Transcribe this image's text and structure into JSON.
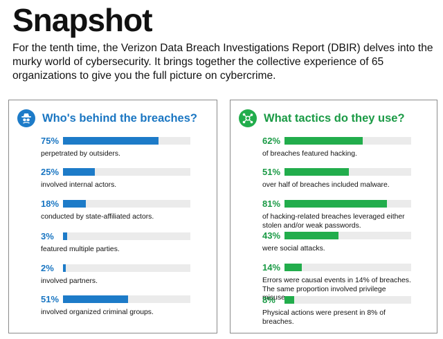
{
  "page": {
    "title": "Snapshot",
    "intro": "For the tenth time, the Verizon Data Breach Investigations Report (DBIR) delves into the murky world of cybersecurity. It brings together the collective experience of 65 organizations to give you the full picture on cybercrime."
  },
  "colors": {
    "blue": "#1d7bc8",
    "green": "#22ad4c",
    "track": "#ebebeb"
  },
  "chart_data": [
    {
      "type": "bar",
      "title": "Who's behind the breaches?",
      "icon": "spy-icon",
      "ylim": [
        0,
        100
      ],
      "items": [
        {
          "label": "75%",
          "value": 75,
          "text": "perpetrated by outsiders."
        },
        {
          "label": "25%",
          "value": 25,
          "text": "involved internal actors."
        },
        {
          "label": "18%",
          "value": 18,
          "text": "conducted by state-affiliated actors."
        },
        {
          "label": "3%",
          "value": 3,
          "text": "featured multiple parties."
        },
        {
          "label": "2%",
          "value": 2,
          "text": "involved partners."
        },
        {
          "label": "51%",
          "value": 51,
          "text": "involved organized criminal groups."
        }
      ]
    },
    {
      "type": "bar",
      "title": "What tactics do they use?",
      "icon": "network-icon",
      "ylim": [
        0,
        100
      ],
      "items": [
        {
          "label": "62%",
          "value": 62,
          "text": "of breaches featured hacking."
        },
        {
          "label": "51%",
          "value": 51,
          "text": "over half of breaches included malware."
        },
        {
          "label": "81%",
          "value": 81,
          "text": "of hacking-related breaches leveraged either stolen and/or weak passwords."
        },
        {
          "label": "43%",
          "value": 43,
          "text": "were social attacks."
        },
        {
          "label": "14%",
          "value": 14,
          "text": "Errors were causal events in 14% of breaches. The same proportion involved privilege misuse."
        },
        {
          "label": "8%",
          "value": 8,
          "text": "Physical actions were present in 8% of breaches."
        }
      ]
    }
  ]
}
